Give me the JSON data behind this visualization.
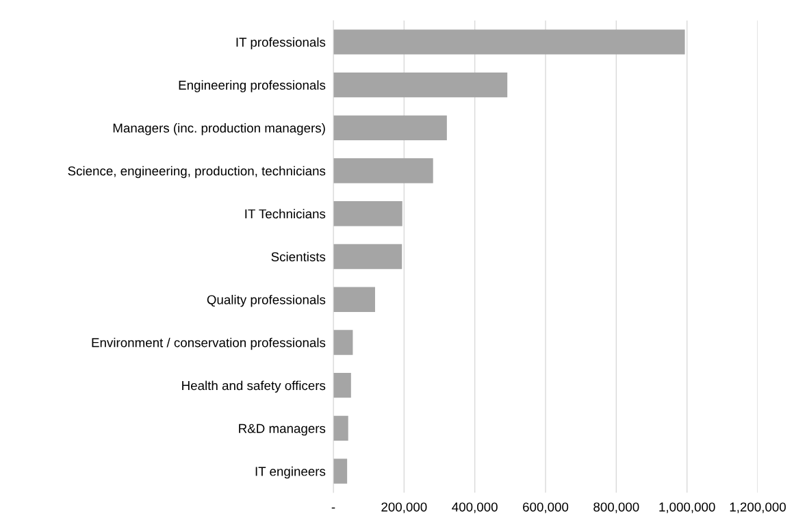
{
  "chart_data": {
    "type": "bar",
    "orientation": "horizontal",
    "categories": [
      "IT professionals",
      "Engineering professionals",
      "Managers (inc. production managers)",
      "Science, engineering, production, technicians",
      "IT Technicians",
      "Scientists",
      "Quality professionals",
      "Environment / conservation professionals",
      "Health and safety officers",
      "R&D managers",
      "IT engineers"
    ],
    "values": [
      994000,
      492000,
      321000,
      282000,
      195000,
      194000,
      118000,
      55000,
      50000,
      42000,
      39000
    ],
    "color": "#a5a5a5",
    "xlim": [
      0,
      1200000
    ],
    "xticks": [
      {
        "value": 0,
        "label": "-"
      },
      {
        "value": 200000,
        "label": "200,000"
      },
      {
        "value": 400000,
        "label": "400,000"
      },
      {
        "value": 600000,
        "label": "600,000"
      },
      {
        "value": 800000,
        "label": "800,000"
      },
      {
        "value": 1000000,
        "label": "1,000,000"
      },
      {
        "value": 1200000,
        "label": "1,200,000"
      }
    ],
    "grid": "x"
  }
}
